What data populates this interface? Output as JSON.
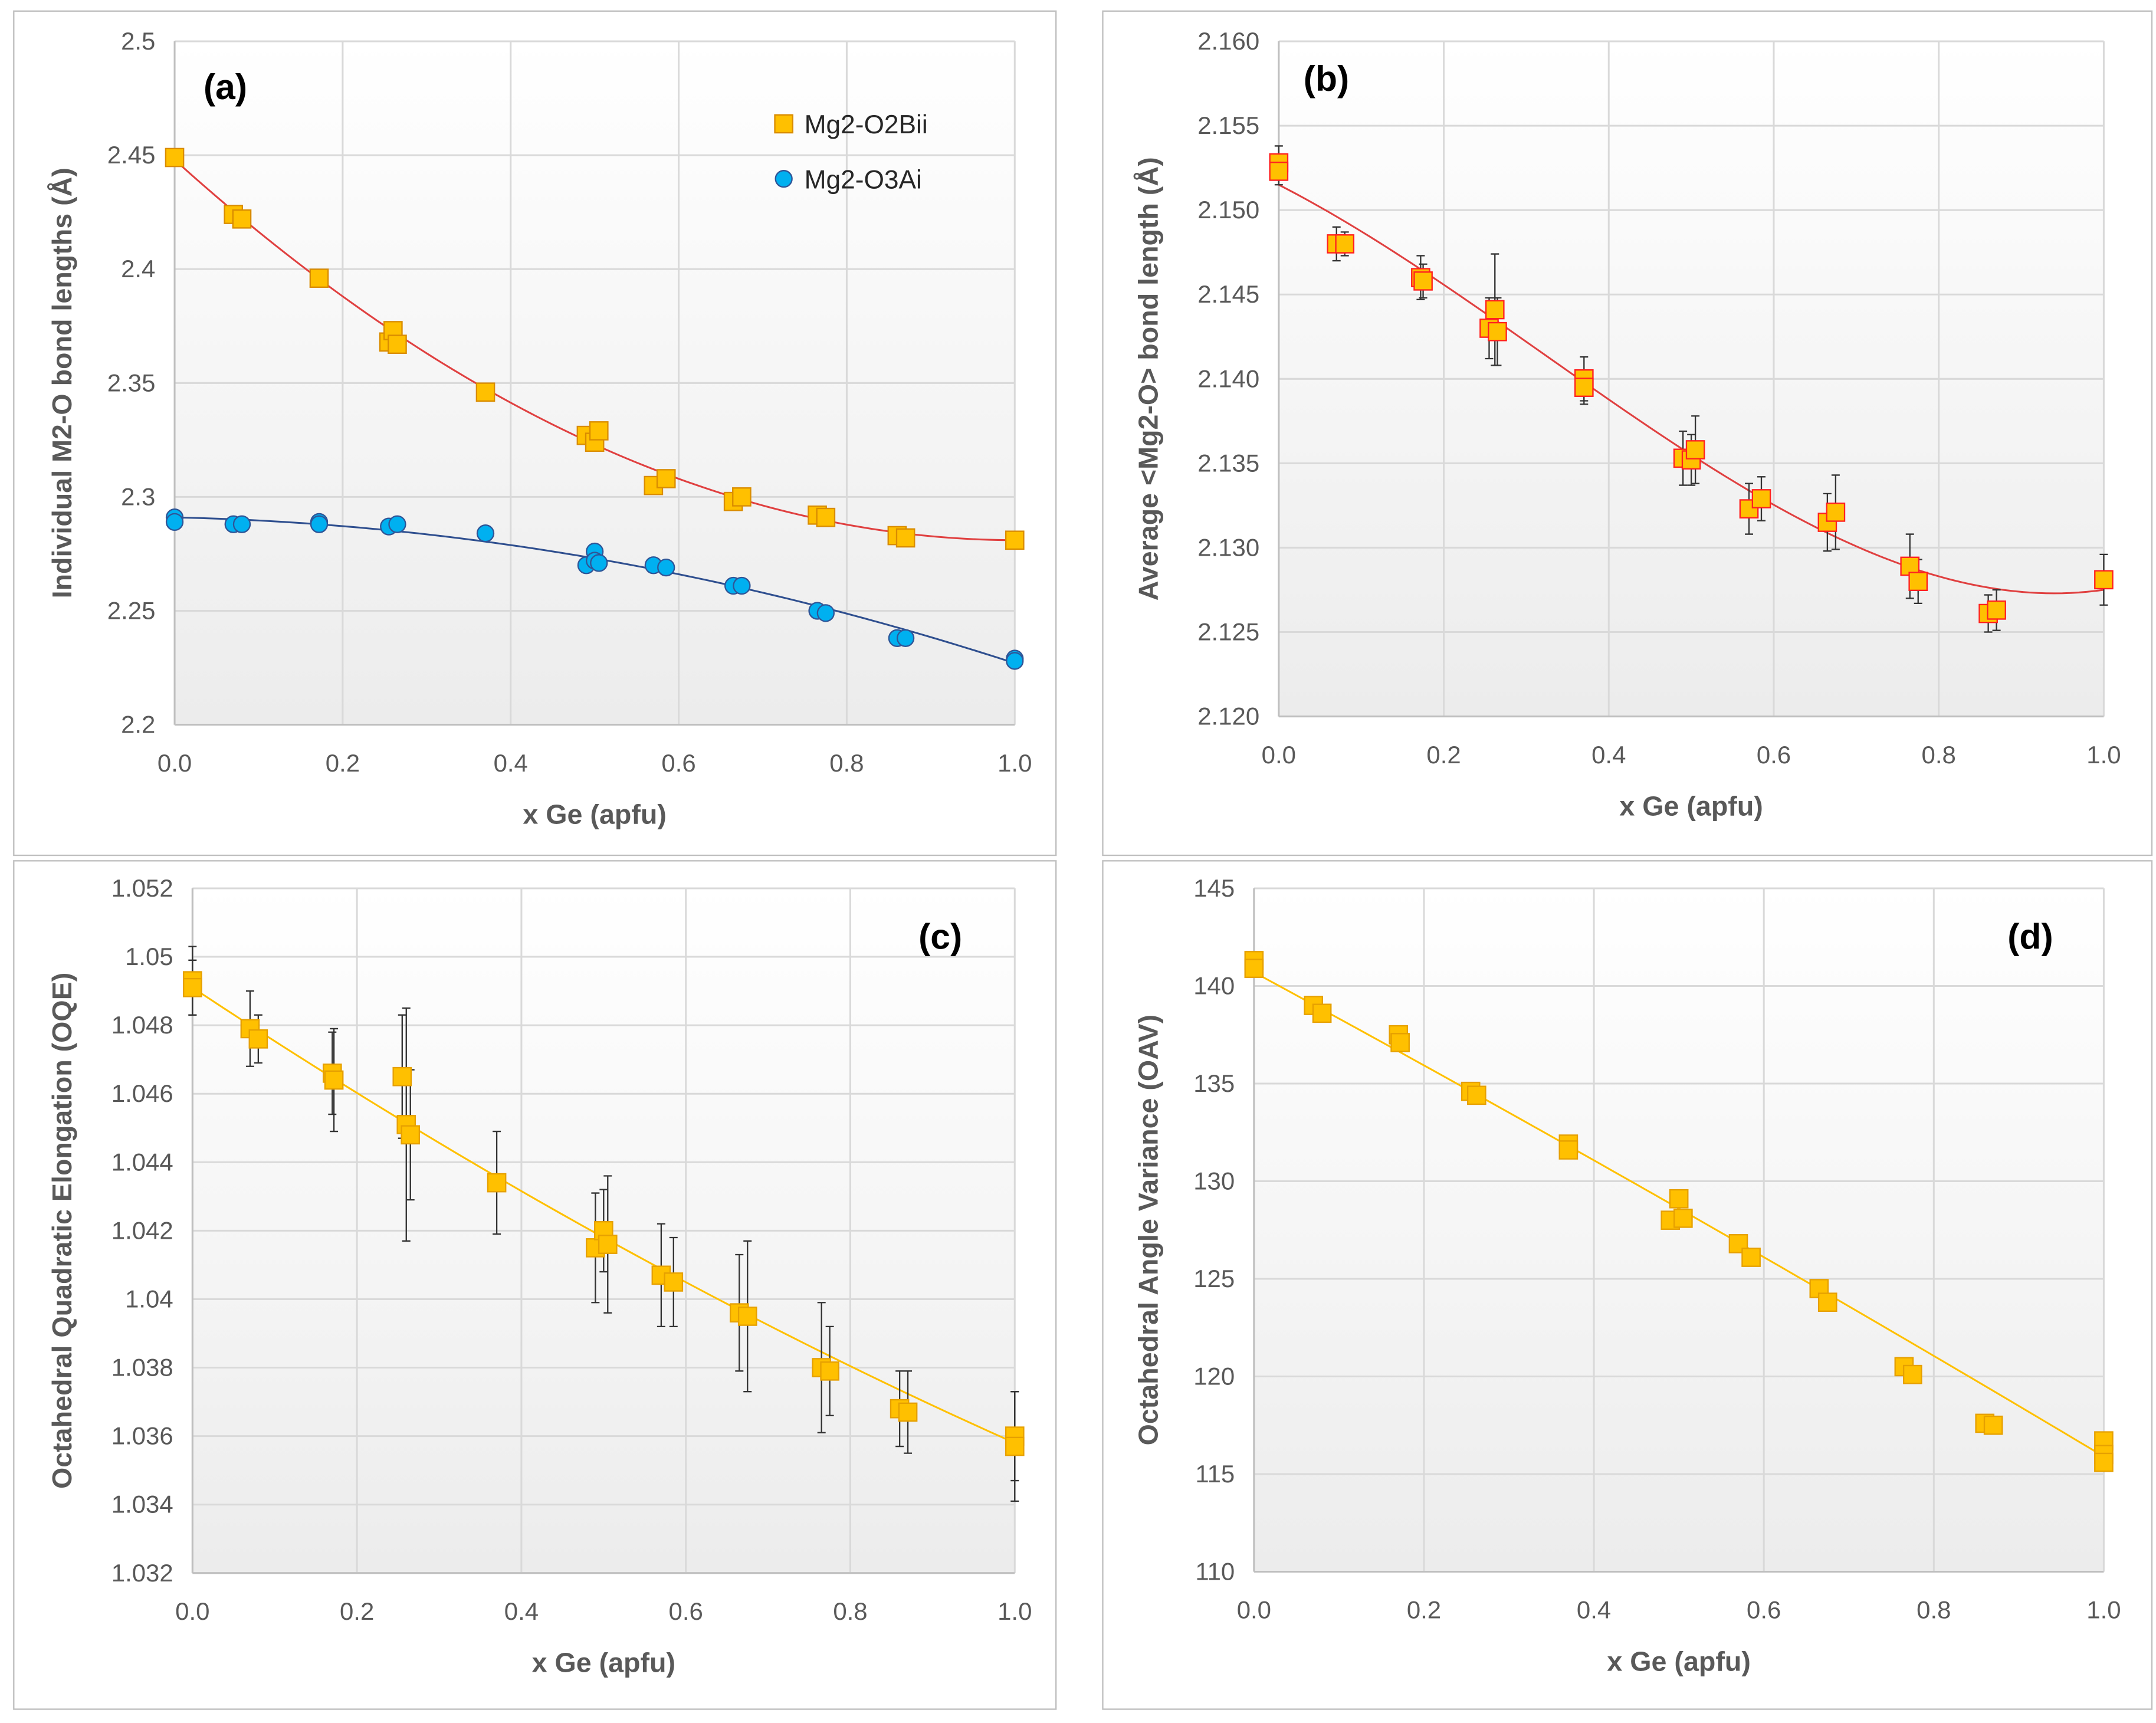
{
  "chart_data": [
    {
      "type": "scatter",
      "panel_label": "(a)",
      "xlabel": "x Ge (apfu)",
      "ylabel": "Individual M2-O bond lengths (Å)",
      "xlim": [
        0,
        1
      ],
      "ylim": [
        2.2,
        2.5
      ],
      "xticks": [
        "0.0",
        "0.2",
        "0.4",
        "0.6",
        "0.8",
        "1.0"
      ],
      "yticks": [
        "2.2",
        "2.25",
        "2.3",
        "2.35",
        "2.4",
        "2.45",
        "2.5"
      ],
      "grid": true,
      "legend_position": "top-right",
      "series": [
        {
          "name": "Mg2-O2Bii",
          "marker": "square",
          "fill": "#FFC000",
          "stroke": "#D98C00",
          "trend_color": "#E04040",
          "trend_poly": [
            2.448,
            -0.333,
            0.166
          ],
          "points": [
            [
              0,
              2.449
            ],
            [
              0.07,
              2.424
            ],
            [
              0.08,
              2.422
            ],
            [
              0.172,
              2.396
            ],
            [
              0.255,
              2.368
            ],
            [
              0.26,
              2.373
            ],
            [
              0.265,
              2.367
            ],
            [
              0.37,
              2.346
            ],
            [
              0.49,
              2.327
            ],
            [
              0.5,
              2.324
            ],
            [
              0.505,
              2.329
            ],
            [
              0.57,
              2.305
            ],
            [
              0.585,
              2.308
            ],
            [
              0.665,
              2.298
            ],
            [
              0.675,
              2.3
            ],
            [
              0.765,
              2.292
            ],
            [
              0.775,
              2.291
            ],
            [
              0.86,
              2.283
            ],
            [
              0.87,
              2.282
            ],
            [
              1.0,
              2.281
            ]
          ]
        },
        {
          "name": "Mg2-O3Ai",
          "marker": "circle",
          "fill": "#00B0F0",
          "stroke": "#2F5597",
          "trend_color": "#2F4F8F",
          "trend_poly": [
            2.291,
            -0.008,
            -0.056
          ],
          "points": [
            [
              0,
              2.291
            ],
            [
              0,
              2.289
            ],
            [
              0.07,
              2.288
            ],
            [
              0.08,
              2.288
            ],
            [
              0.172,
              2.289
            ],
            [
              0.172,
              2.288
            ],
            [
              0.255,
              2.287
            ],
            [
              0.265,
              2.288
            ],
            [
              0.37,
              2.284
            ],
            [
              0.49,
              2.27
            ],
            [
              0.5,
              2.276
            ],
            [
              0.5,
              2.272
            ],
            [
              0.505,
              2.271
            ],
            [
              0.57,
              2.27
            ],
            [
              0.585,
              2.269
            ],
            [
              0.665,
              2.261
            ],
            [
              0.675,
              2.261
            ],
            [
              0.765,
              2.25
            ],
            [
              0.775,
              2.249
            ],
            [
              0.86,
              2.238
            ],
            [
              0.87,
              2.238
            ],
            [
              1.0,
              2.229
            ],
            [
              1.0,
              2.228
            ]
          ]
        }
      ]
    },
    {
      "type": "scatter",
      "panel_label": "(b)",
      "xlabel": "x Ge (apfu)",
      "ylabel": "Average <Mg2-O> bond length (Å)",
      "xlim": [
        0,
        1
      ],
      "ylim": [
        2.12,
        2.16
      ],
      "xticks": [
        "0.0",
        "0.2",
        "0.4",
        "0.6",
        "0.8",
        "1.0"
      ],
      "yticks": [
        "2.120",
        "2.125",
        "2.130",
        "2.135",
        "2.140",
        "2.145",
        "2.150",
        "2.155",
        "2.160"
      ],
      "grid": true,
      "series": [
        {
          "name": "<Mg2-O>",
          "marker": "square",
          "fill": "#FFC000",
          "stroke": "#FF2020",
          "trend_color": "#E04040",
          "trend_poly": [
            2.1515,
            -0.025,
            -0.029,
            0.03
          ],
          "points": [
            [
              0,
              2.1528,
              0.001
            ],
            [
              0,
              2.1523,
              0.0008
            ],
            [
              0.07,
              2.148,
              0.001
            ],
            [
              0.08,
              2.148,
              0.0007
            ],
            [
              0.172,
              2.146,
              0.0013
            ],
            [
              0.175,
              2.1458,
              0.001
            ],
            [
              0.255,
              2.143,
              0.0018
            ],
            [
              0.262,
              2.1441,
              0.0033
            ],
            [
              0.265,
              2.1428,
              0.002
            ],
            [
              0.37,
              2.14,
              0.0013
            ],
            [
              0.37,
              2.1395,
              0.001
            ],
            [
              0.49,
              2.1353,
              0.0016
            ],
            [
              0.5,
              2.1352,
              0.0015
            ],
            [
              0.505,
              2.1358,
              0.002
            ],
            [
              0.57,
              2.1323,
              0.0015
            ],
            [
              0.585,
              2.1329,
              0.0013
            ],
            [
              0.665,
              2.1315,
              0.0017
            ],
            [
              0.675,
              2.1321,
              0.0022
            ],
            [
              0.765,
              2.1289,
              0.0019
            ],
            [
              0.775,
              2.128,
              0.0013
            ],
            [
              0.86,
              2.1261,
              0.0011
            ],
            [
              0.87,
              2.1263,
              0.0012
            ],
            [
              1.0,
              2.1281,
              0.0015
            ]
          ]
        }
      ]
    },
    {
      "type": "scatter",
      "panel_label": "(c)",
      "xlabel": "x Ge (apfu)",
      "ylabel": "Octahedral Quadratic Elongation (OQE)",
      "xlim": [
        0,
        1
      ],
      "ylim": [
        1.032,
        1.052
      ],
      "xticks": [
        "0.0",
        "0.2",
        "0.4",
        "0.6",
        "0.8",
        "1.0"
      ],
      "yticks": [
        "1.032",
        "1.034",
        "1.036",
        "1.038",
        "1.04",
        "1.042",
        "1.044",
        "1.046",
        "1.048",
        "1.05",
        "1.052"
      ],
      "grid": true,
      "series": [
        {
          "name": "OQE",
          "marker": "square",
          "fill": "#FFC000",
          "stroke": "#E6A000",
          "trend_color": "#FFC000",
          "trend_poly": [
            1.0491,
            -0.0159,
            0.0026
          ],
          "points": [
            [
              0,
              1.0493,
              0.001
            ],
            [
              0,
              1.0491,
              0.0008
            ],
            [
              0.07,
              1.0479,
              0.0011
            ],
            [
              0.08,
              1.0476,
              0.0007
            ],
            [
              0.17,
              1.0466,
              0.0012
            ],
            [
              0.172,
              1.0464,
              0.0015
            ],
            [
              0.255,
              1.0465,
              0.0018
            ],
            [
              0.26,
              1.0451,
              0.0034
            ],
            [
              0.265,
              1.0448,
              0.0019
            ],
            [
              0.37,
              1.0434,
              0.0015
            ],
            [
              0.49,
              1.0415,
              0.0016
            ],
            [
              0.5,
              1.042,
              0.0012
            ],
            [
              0.505,
              1.0416,
              0.002
            ],
            [
              0.57,
              1.0407,
              0.0015
            ],
            [
              0.585,
              1.0405,
              0.0013
            ],
            [
              0.665,
              1.0396,
              0.0017
            ],
            [
              0.675,
              1.0395,
              0.0022
            ],
            [
              0.765,
              1.038,
              0.0019
            ],
            [
              0.775,
              1.0379,
              0.0013
            ],
            [
              0.86,
              1.0368,
              0.0011
            ],
            [
              0.87,
              1.0367,
              0.0012
            ],
            [
              1.0,
              1.036,
              0.0013
            ],
            [
              1.0,
              1.0357,
              0.0016
            ]
          ]
        }
      ]
    },
    {
      "type": "scatter",
      "panel_label": "(d)",
      "xlabel": "x Ge (apfu)",
      "ylabel": "Octahedral Angle Variance (OAV)",
      "xlim": [
        0,
        1
      ],
      "ylim": [
        110,
        145
      ],
      "xticks": [
        "0.0",
        "0.2",
        "0.4",
        "0.6",
        "0.8",
        "1.0"
      ],
      "yticks": [
        "110",
        "115",
        "120",
        "125",
        "130",
        "135",
        "140",
        "145"
      ],
      "grid": true,
      "series": [
        {
          "name": "OAV",
          "marker": "square",
          "fill": "#FFC000",
          "stroke": "#E6A000",
          "trend_color": "#FFC000",
          "trend_poly": [
            140.7,
            -23.6,
            -1.2
          ],
          "points": [
            [
              0,
              141.3
            ],
            [
              0,
              140.9
            ],
            [
              0.07,
              139.0
            ],
            [
              0.08,
              138.6
            ],
            [
              0.17,
              137.5
            ],
            [
              0.172,
              137.1
            ],
            [
              0.255,
              134.6
            ],
            [
              0.262,
              134.4
            ],
            [
              0.37,
              131.9
            ],
            [
              0.37,
              131.6
            ],
            [
              0.49,
              128.0
            ],
            [
              0.5,
              129.1
            ],
            [
              0.505,
              128.1
            ],
            [
              0.57,
              126.8
            ],
            [
              0.585,
              126.1
            ],
            [
              0.665,
              124.5
            ],
            [
              0.675,
              123.8
            ],
            [
              0.765,
              120.5
            ],
            [
              0.775,
              120.1
            ],
            [
              0.86,
              117.6
            ],
            [
              0.87,
              117.5
            ],
            [
              1.0,
              116.7
            ],
            [
              1.0,
              116.0
            ],
            [
              1.0,
              115.6
            ]
          ]
        }
      ]
    }
  ]
}
